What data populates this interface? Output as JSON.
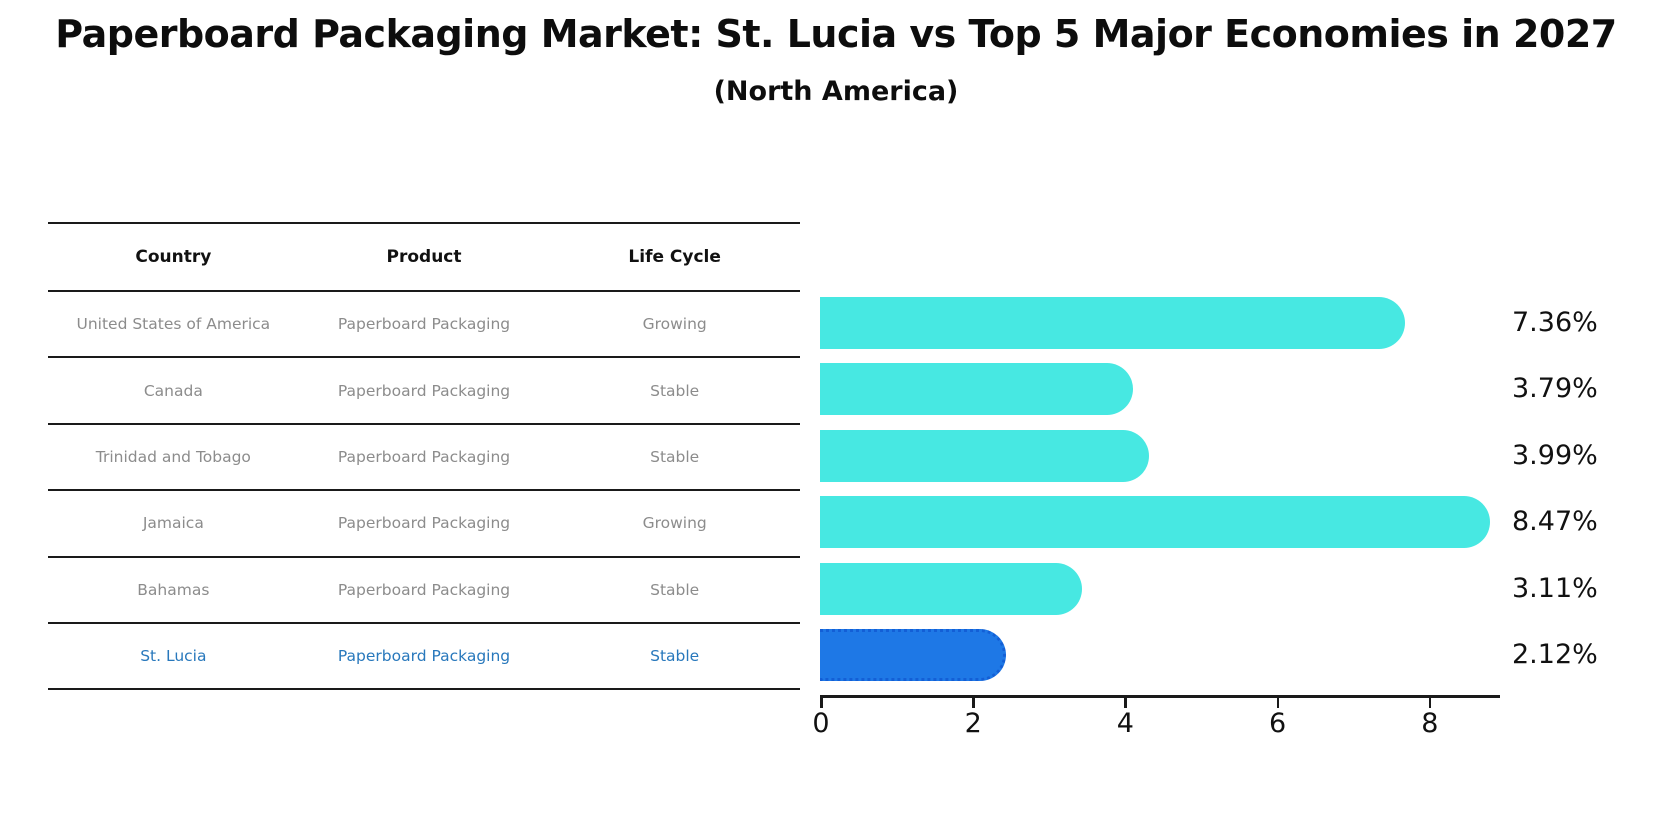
{
  "title": "Paperboard Packaging Market: St. Lucia vs Top 5 Major Economies in 2027",
  "subtitle": "(North America)",
  "table": {
    "headers": [
      "Country",
      "Product",
      "Life Cycle"
    ],
    "rows": [
      {
        "country": "United States of America",
        "product": "Paperboard Packaging",
        "life_cycle": "Growing",
        "highlight": false
      },
      {
        "country": "Canada",
        "product": "Paperboard Packaging",
        "life_cycle": "Stable",
        "highlight": false
      },
      {
        "country": "Trinidad and Tobago",
        "product": "Paperboard Packaging",
        "life_cycle": "Stable",
        "highlight": false
      },
      {
        "country": "Jamaica",
        "product": "Paperboard Packaging",
        "life_cycle": "Growing",
        "highlight": false
      },
      {
        "country": "Bahamas",
        "product": "Paperboard Packaging",
        "life_cycle": "Stable",
        "highlight": false
      },
      {
        "country": "St. Lucia",
        "product": "Paperboard Packaging",
        "life_cycle": "Stable",
        "highlight": true
      }
    ]
  },
  "chart_data": {
    "type": "bar",
    "orientation": "horizontal",
    "title": "Paperboard Packaging Market: St. Lucia vs Top 5 Major Economies in 2027",
    "subtitle": "(North America)",
    "categories": [
      "United States of America",
      "Canada",
      "Trinidad and Tobago",
      "Jamaica",
      "Bahamas",
      "St. Lucia"
    ],
    "values": [
      7.36,
      3.79,
      3.99,
      8.47,
      3.11,
      2.12
    ],
    "value_labels": [
      "7.36%",
      "3.79%",
      "3.99%",
      "8.47%",
      "3.11%",
      "2.12%"
    ],
    "x_ticks": [
      0,
      2,
      4,
      6,
      8
    ],
    "xlim": [
      0,
      8.9
    ],
    "xlabel": "",
    "ylabel": "",
    "grid": false,
    "legend": "none",
    "bar_color": "#47E8E2",
    "highlight_color": "#1E78E6",
    "highlight_border_color": "#135fd6",
    "highlight_index": 5,
    "value_label_color": "#111111"
  },
  "colors": {
    "row_text": "#8c8c8c",
    "highlight_text": "#2878bc",
    "header_text": "#111111",
    "table_line": "#1a1a1a",
    "axis": "#1a1a1a"
  }
}
